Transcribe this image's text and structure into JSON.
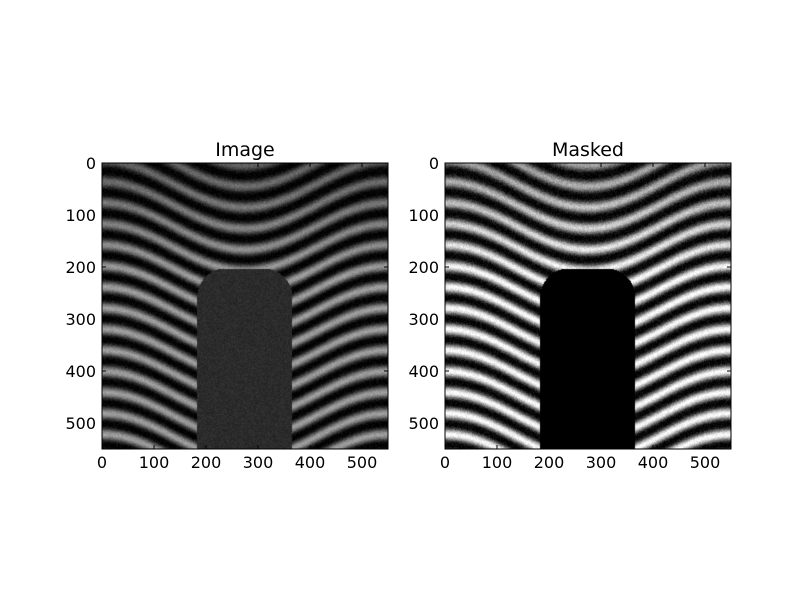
{
  "chart_data": [
    {
      "type": "heatmap",
      "title": "Image",
      "colormap": "gray",
      "xlim": [
        0,
        550
      ],
      "ylim": [
        550,
        0
      ],
      "xticks": [
        0,
        100,
        200,
        300,
        400,
        500
      ],
      "yticks": [
        0,
        100,
        200,
        300,
        400,
        500
      ],
      "content": "interference fringe pattern with a dim rounded-top rectangular region",
      "fringe_brightness": 0.62,
      "region": {
        "x": [
          183,
          366
        ],
        "y_top": 203,
        "y_bottom": 550,
        "corner_radius": 55,
        "brightness": 0.17
      }
    },
    {
      "type": "heatmap",
      "title": "Masked",
      "colormap": "gray",
      "xlim": [
        0,
        550
      ],
      "ylim": [
        550,
        0
      ],
      "xticks": [
        0,
        100,
        200,
        300,
        400,
        500
      ],
      "yticks": [
        0,
        100,
        200,
        300,
        400,
        500
      ],
      "content": "same fringe pattern, contrast-stretched, with the rounded-top region masked to black",
      "fringe_brightness": 1.0,
      "region": {
        "x": [
          183,
          366
        ],
        "y_top": 203,
        "y_bottom": 550,
        "corner_radius": 55,
        "brightness": 0.0
      }
    }
  ],
  "fringe": {
    "period": 40.5,
    "amplitude": 45,
    "horizontal_period": 550
  }
}
